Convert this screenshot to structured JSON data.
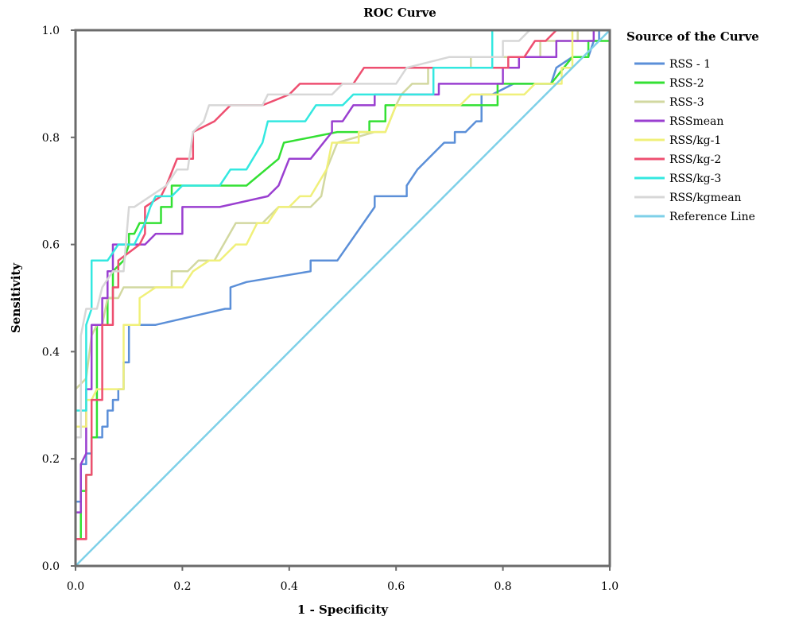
{
  "chart_data": {
    "type": "line",
    "title": "ROC Curve",
    "xlabel": "1 - Specificity",
    "ylabel": "Sensitivity",
    "xlim": [
      0,
      1
    ],
    "ylim": [
      0,
      1
    ],
    "xticks": [
      "0.0",
      "0.2",
      "0.4",
      "0.6",
      "0.8",
      "1.0"
    ],
    "yticks": [
      "0.0",
      "0.2",
      "0.4",
      "0.6",
      "0.8",
      "1.0"
    ],
    "grid": false,
    "legend_title": "Source of the Curve",
    "legend_position": "right",
    "series": [
      {
        "name": "RSS - 1",
        "color": "#5b8fd8",
        "points": [
          [
            0,
            0
          ],
          [
            0,
            0.12
          ],
          [
            0.01,
            0.12
          ],
          [
            0.01,
            0.19
          ],
          [
            0.02,
            0.19
          ],
          [
            0.02,
            0.21
          ],
          [
            0.03,
            0.21
          ],
          [
            0.03,
            0.24
          ],
          [
            0.05,
            0.24
          ],
          [
            0.05,
            0.26
          ],
          [
            0.06,
            0.26
          ],
          [
            0.06,
            0.29
          ],
          [
            0.07,
            0.29
          ],
          [
            0.07,
            0.31
          ],
          [
            0.08,
            0.31
          ],
          [
            0.08,
            0.33
          ],
          [
            0.09,
            0.33
          ],
          [
            0.09,
            0.38
          ],
          [
            0.1,
            0.38
          ],
          [
            0.1,
            0.45
          ],
          [
            0.15,
            0.45
          ],
          [
            0.28,
            0.48
          ],
          [
            0.29,
            0.48
          ],
          [
            0.29,
            0.52
          ],
          [
            0.32,
            0.53
          ],
          [
            0.44,
            0.55
          ],
          [
            0.44,
            0.57
          ],
          [
            0.49,
            0.57
          ],
          [
            0.56,
            0.67
          ],
          [
            0.56,
            0.69
          ],
          [
            0.62,
            0.69
          ],
          [
            0.62,
            0.71
          ],
          [
            0.64,
            0.74
          ],
          [
            0.66,
            0.76
          ],
          [
            0.69,
            0.79
          ],
          [
            0.71,
            0.79
          ],
          [
            0.71,
            0.81
          ],
          [
            0.73,
            0.81
          ],
          [
            0.75,
            0.83
          ],
          [
            0.76,
            0.83
          ],
          [
            0.76,
            0.88
          ],
          [
            0.78,
            0.88
          ],
          [
            0.82,
            0.9
          ],
          [
            0.84,
            0.9
          ],
          [
            0.89,
            0.9
          ],
          [
            0.9,
            0.93
          ],
          [
            0.93,
            0.95
          ],
          [
            0.95,
            0.95
          ],
          [
            0.96,
            0.95
          ],
          [
            0.97,
            0.98
          ],
          [
            0.98,
            0.98
          ],
          [
            0.98,
            1
          ],
          [
            1,
            1
          ]
        ]
      },
      {
        "name": "RSS-2",
        "color": "#33e033",
        "points": [
          [
            0,
            0
          ],
          [
            0,
            0.05
          ],
          [
            0.01,
            0.05
          ],
          [
            0.01,
            0.14
          ],
          [
            0.02,
            0.14
          ],
          [
            0.02,
            0.17
          ],
          [
            0.03,
            0.17
          ],
          [
            0.03,
            0.24
          ],
          [
            0.04,
            0.24
          ],
          [
            0.04,
            0.45
          ],
          [
            0.06,
            0.45
          ],
          [
            0.06,
            0.5
          ],
          [
            0.07,
            0.5
          ],
          [
            0.07,
            0.55
          ],
          [
            0.09,
            0.57
          ],
          [
            0.1,
            0.6
          ],
          [
            0.1,
            0.62
          ],
          [
            0.11,
            0.62
          ],
          [
            0.12,
            0.64
          ],
          [
            0.16,
            0.64
          ],
          [
            0.16,
            0.67
          ],
          [
            0.18,
            0.67
          ],
          [
            0.18,
            0.71
          ],
          [
            0.32,
            0.71
          ],
          [
            0.38,
            0.76
          ],
          [
            0.39,
            0.79
          ],
          [
            0.49,
            0.81
          ],
          [
            0.55,
            0.81
          ],
          [
            0.55,
            0.83
          ],
          [
            0.58,
            0.83
          ],
          [
            0.58,
            0.86
          ],
          [
            0.79,
            0.86
          ],
          [
            0.79,
            0.9
          ],
          [
            0.89,
            0.9
          ],
          [
            0.93,
            0.95
          ],
          [
            0.96,
            0.95
          ],
          [
            0.96,
            0.98
          ],
          [
            1,
            0.98
          ]
        ]
      },
      {
        "name": "RSS-3",
        "color": "#d2d8a0",
        "points": [
          [
            0,
            0
          ],
          [
            0,
            0.33
          ],
          [
            0.02,
            0.35
          ],
          [
            0.03,
            0.43
          ],
          [
            0.04,
            0.45
          ],
          [
            0.05,
            0.45
          ],
          [
            0.06,
            0.5
          ],
          [
            0.08,
            0.5
          ],
          [
            0.09,
            0.52
          ],
          [
            0.18,
            0.52
          ],
          [
            0.18,
            0.55
          ],
          [
            0.21,
            0.55
          ],
          [
            0.23,
            0.57
          ],
          [
            0.26,
            0.57
          ],
          [
            0.3,
            0.64
          ],
          [
            0.35,
            0.64
          ],
          [
            0.38,
            0.67
          ],
          [
            0.44,
            0.67
          ],
          [
            0.46,
            0.69
          ],
          [
            0.47,
            0.74
          ],
          [
            0.49,
            0.79
          ],
          [
            0.56,
            0.81
          ],
          [
            0.58,
            0.81
          ],
          [
            0.6,
            0.86
          ],
          [
            0.61,
            0.88
          ],
          [
            0.63,
            0.9
          ],
          [
            0.66,
            0.9
          ],
          [
            0.66,
            0.93
          ],
          [
            0.74,
            0.93
          ],
          [
            0.74,
            0.95
          ],
          [
            0.87,
            0.95
          ],
          [
            0.87,
            0.98
          ],
          [
            0.94,
            0.98
          ],
          [
            0.94,
            1
          ],
          [
            1,
            1
          ]
        ]
      },
      {
        "name": "RSSmean",
        "color": "#9a3fd0",
        "points": [
          [
            0,
            0
          ],
          [
            0,
            0.1
          ],
          [
            0.01,
            0.1
          ],
          [
            0.01,
            0.19
          ],
          [
            0.02,
            0.21
          ],
          [
            0.02,
            0.33
          ],
          [
            0.03,
            0.33
          ],
          [
            0.03,
            0.45
          ],
          [
            0.05,
            0.45
          ],
          [
            0.05,
            0.5
          ],
          [
            0.06,
            0.5
          ],
          [
            0.06,
            0.55
          ],
          [
            0.07,
            0.55
          ],
          [
            0.07,
            0.6
          ],
          [
            0.13,
            0.6
          ],
          [
            0.15,
            0.62
          ],
          [
            0.2,
            0.62
          ],
          [
            0.2,
            0.67
          ],
          [
            0.27,
            0.67
          ],
          [
            0.36,
            0.69
          ],
          [
            0.38,
            0.71
          ],
          [
            0.4,
            0.76
          ],
          [
            0.44,
            0.76
          ],
          [
            0.48,
            0.81
          ],
          [
            0.48,
            0.83
          ],
          [
            0.5,
            0.83
          ],
          [
            0.52,
            0.86
          ],
          [
            0.56,
            0.86
          ],
          [
            0.56,
            0.88
          ],
          [
            0.68,
            0.88
          ],
          [
            0.68,
            0.9
          ],
          [
            0.8,
            0.9
          ],
          [
            0.8,
            0.93
          ],
          [
            0.83,
            0.93
          ],
          [
            0.83,
            0.95
          ],
          [
            0.9,
            0.95
          ],
          [
            0.9,
            0.98
          ],
          [
            0.97,
            0.98
          ],
          [
            0.97,
            1
          ],
          [
            1,
            1
          ]
        ]
      },
      {
        "name": "RSS/kg-1",
        "color": "#f0f07a",
        "points": [
          [
            0,
            0
          ],
          [
            0,
            0.26
          ],
          [
            0.02,
            0.26
          ],
          [
            0.02,
            0.31
          ],
          [
            0.03,
            0.31
          ],
          [
            0.04,
            0.33
          ],
          [
            0.09,
            0.33
          ],
          [
            0.09,
            0.45
          ],
          [
            0.12,
            0.45
          ],
          [
            0.12,
            0.5
          ],
          [
            0.15,
            0.52
          ],
          [
            0.2,
            0.52
          ],
          [
            0.22,
            0.55
          ],
          [
            0.25,
            0.57
          ],
          [
            0.27,
            0.57
          ],
          [
            0.3,
            0.6
          ],
          [
            0.32,
            0.6
          ],
          [
            0.34,
            0.64
          ],
          [
            0.36,
            0.64
          ],
          [
            0.38,
            0.67
          ],
          [
            0.4,
            0.67
          ],
          [
            0.42,
            0.69
          ],
          [
            0.44,
            0.69
          ],
          [
            0.47,
            0.74
          ],
          [
            0.48,
            0.79
          ],
          [
            0.53,
            0.79
          ],
          [
            0.53,
            0.81
          ],
          [
            0.58,
            0.81
          ],
          [
            0.6,
            0.86
          ],
          [
            0.72,
            0.86
          ],
          [
            0.74,
            0.88
          ],
          [
            0.84,
            0.88
          ],
          [
            0.86,
            0.9
          ],
          [
            0.91,
            0.9
          ],
          [
            0.91,
            0.93
          ],
          [
            0.93,
            0.93
          ],
          [
            0.93,
            1
          ],
          [
            1,
            1
          ]
        ]
      },
      {
        "name": "RSS/kg-2",
        "color": "#ee4f70",
        "points": [
          [
            0,
            0
          ],
          [
            0,
            0.05
          ],
          [
            0.02,
            0.05
          ],
          [
            0.02,
            0.17
          ],
          [
            0.03,
            0.17
          ],
          [
            0.03,
            0.31
          ],
          [
            0.05,
            0.31
          ],
          [
            0.05,
            0.45
          ],
          [
            0.07,
            0.45
          ],
          [
            0.07,
            0.52
          ],
          [
            0.08,
            0.52
          ],
          [
            0.08,
            0.57
          ],
          [
            0.12,
            0.6
          ],
          [
            0.13,
            0.62
          ],
          [
            0.13,
            0.67
          ],
          [
            0.16,
            0.69
          ],
          [
            0.17,
            0.71
          ],
          [
            0.19,
            0.76
          ],
          [
            0.22,
            0.76
          ],
          [
            0.22,
            0.81
          ],
          [
            0.26,
            0.83
          ],
          [
            0.29,
            0.86
          ],
          [
            0.35,
            0.86
          ],
          [
            0.4,
            0.88
          ],
          [
            0.42,
            0.9
          ],
          [
            0.52,
            0.9
          ],
          [
            0.54,
            0.93
          ],
          [
            0.67,
            0.93
          ],
          [
            0.78,
            0.93
          ],
          [
            0.81,
            0.93
          ],
          [
            0.81,
            0.95
          ],
          [
            0.84,
            0.95
          ],
          [
            0.86,
            0.98
          ],
          [
            0.88,
            0.98
          ],
          [
            0.9,
            1
          ],
          [
            1,
            1
          ]
        ]
      },
      {
        "name": "RSS/kg-3",
        "color": "#33e8e0",
        "points": [
          [
            0,
            0
          ],
          [
            0,
            0.29
          ],
          [
            0.02,
            0.29
          ],
          [
            0.02,
            0.45
          ],
          [
            0.03,
            0.48
          ],
          [
            0.03,
            0.57
          ],
          [
            0.06,
            0.57
          ],
          [
            0.08,
            0.6
          ],
          [
            0.11,
            0.6
          ],
          [
            0.13,
            0.64
          ],
          [
            0.14,
            0.67
          ],
          [
            0.15,
            0.69
          ],
          [
            0.18,
            0.69
          ],
          [
            0.2,
            0.71
          ],
          [
            0.27,
            0.71
          ],
          [
            0.29,
            0.74
          ],
          [
            0.32,
            0.74
          ],
          [
            0.35,
            0.79
          ],
          [
            0.36,
            0.83
          ],
          [
            0.43,
            0.83
          ],
          [
            0.45,
            0.86
          ],
          [
            0.5,
            0.86
          ],
          [
            0.52,
            0.88
          ],
          [
            0.67,
            0.88
          ],
          [
            0.67,
            0.93
          ],
          [
            0.78,
            0.93
          ],
          [
            0.78,
            1
          ],
          [
            1,
            1
          ]
        ]
      },
      {
        "name": "RSS/kgmean",
        "color": "#d7d7d7",
        "points": [
          [
            0,
            0
          ],
          [
            0,
            0.24
          ],
          [
            0.01,
            0.24
          ],
          [
            0.01,
            0.43
          ],
          [
            0.02,
            0.48
          ],
          [
            0.04,
            0.48
          ],
          [
            0.05,
            0.52
          ],
          [
            0.07,
            0.55
          ],
          [
            0.09,
            0.55
          ],
          [
            0.1,
            0.67
          ],
          [
            0.11,
            0.67
          ],
          [
            0.14,
            0.69
          ],
          [
            0.17,
            0.71
          ],
          [
            0.19,
            0.74
          ],
          [
            0.21,
            0.74
          ],
          [
            0.22,
            0.81
          ],
          [
            0.24,
            0.83
          ],
          [
            0.25,
            0.86
          ],
          [
            0.35,
            0.86
          ],
          [
            0.36,
            0.88
          ],
          [
            0.48,
            0.88
          ],
          [
            0.5,
            0.9
          ],
          [
            0.6,
            0.9
          ],
          [
            0.62,
            0.93
          ],
          [
            0.7,
            0.95
          ],
          [
            0.8,
            0.95
          ],
          [
            0.8,
            0.98
          ],
          [
            0.83,
            0.98
          ],
          [
            0.85,
            1
          ],
          [
            1,
            1
          ]
        ]
      },
      {
        "name": "Reference Line",
        "color": "#7ed0e8",
        "points": [
          [
            0,
            0
          ],
          [
            1,
            1
          ]
        ]
      }
    ]
  }
}
